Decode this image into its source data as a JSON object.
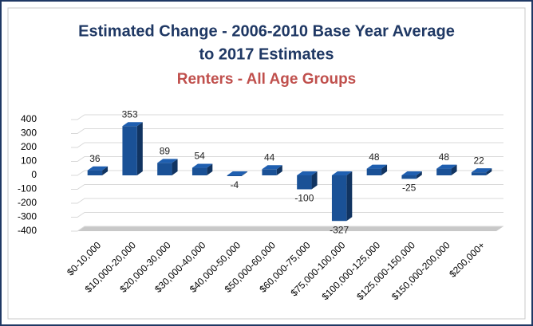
{
  "chart_data": {
    "type": "bar",
    "title": [
      "Estimated Change - 2006-2010 Base Year Average",
      "to 2017 Estimates"
    ],
    "subtitle": "Renters - All Age Groups",
    "categories": [
      "$0-10,000",
      "$10,000-20,000",
      "$20,000-30,000",
      "$30,000-40,000",
      "$40,000-50,000",
      "$50,000-60,000",
      "$60,000-75,000",
      "$75,000-100,000",
      "$100,000-125,000",
      "$125,000-150,000",
      "$150,000-200,000",
      "$200,000+"
    ],
    "values": [
      36,
      353,
      89,
      54,
      -4,
      44,
      -100,
      -327,
      48,
      -25,
      48,
      22
    ],
    "color": "#1f5fb0",
    "ylim": [
      -400,
      400
    ],
    "yticks": [
      -400,
      -300,
      -200,
      -100,
      0,
      100,
      200,
      300,
      400
    ],
    "grid": true
  }
}
